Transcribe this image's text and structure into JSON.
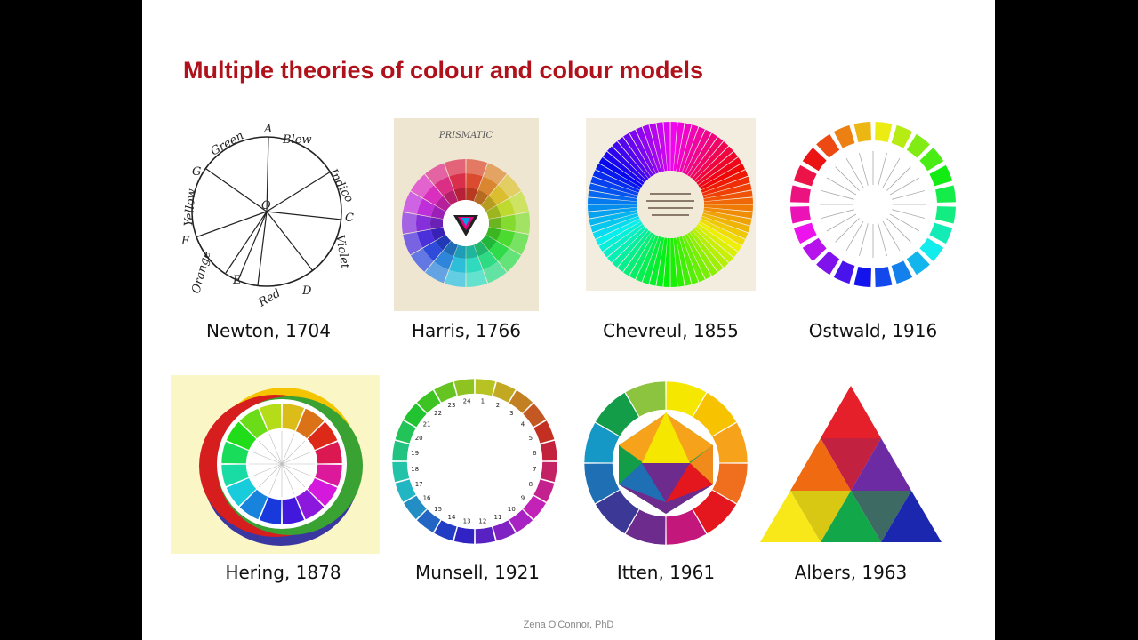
{
  "slide": {
    "title": "Multiple theories of colour and colour models",
    "footer": "Zena O'Connor, PhD"
  },
  "models": [
    {
      "caption": "Newton, 1704",
      "icon": "newton-colour-circle-icon"
    },
    {
      "caption": "Harris, 1766",
      "icon": "harris-prismatic-wheel-icon"
    },
    {
      "caption": "Chevreul, 1855",
      "icon": "chevreul-chromatic-circle-icon"
    },
    {
      "caption": "Ostwald, 1916",
      "icon": "ostwald-colour-circle-icon"
    },
    {
      "caption": "Hering, 1878",
      "icon": "hering-colour-circle-icon"
    },
    {
      "caption": "Munsell, 1921",
      "icon": "munsell-colour-circle-icon"
    },
    {
      "caption": "Itten, 1961",
      "icon": "itten-colour-wheel-icon"
    },
    {
      "caption": "Albers, 1963",
      "icon": "albers-colour-triangle-icon"
    }
  ],
  "figure_text": {
    "newton_labels": [
      "A",
      "Blew",
      "Indico",
      "C",
      "Violet",
      "D",
      "Red",
      "Orange",
      "E",
      "Yellow",
      "F",
      "Green",
      "G",
      "O"
    ],
    "harris_heading": "PRISMATIC",
    "munsell_numbers": [
      "1",
      "2",
      "3",
      "4",
      "5",
      "6",
      "7",
      "8",
      "9",
      "10",
      "11",
      "12",
      "13",
      "14",
      "15",
      "16",
      "17",
      "18",
      "19",
      "20",
      "21",
      "22",
      "23",
      "24"
    ]
  },
  "colors": {
    "title": "#b0121b",
    "background": "#ffffff",
    "outer": "#000000"
  }
}
